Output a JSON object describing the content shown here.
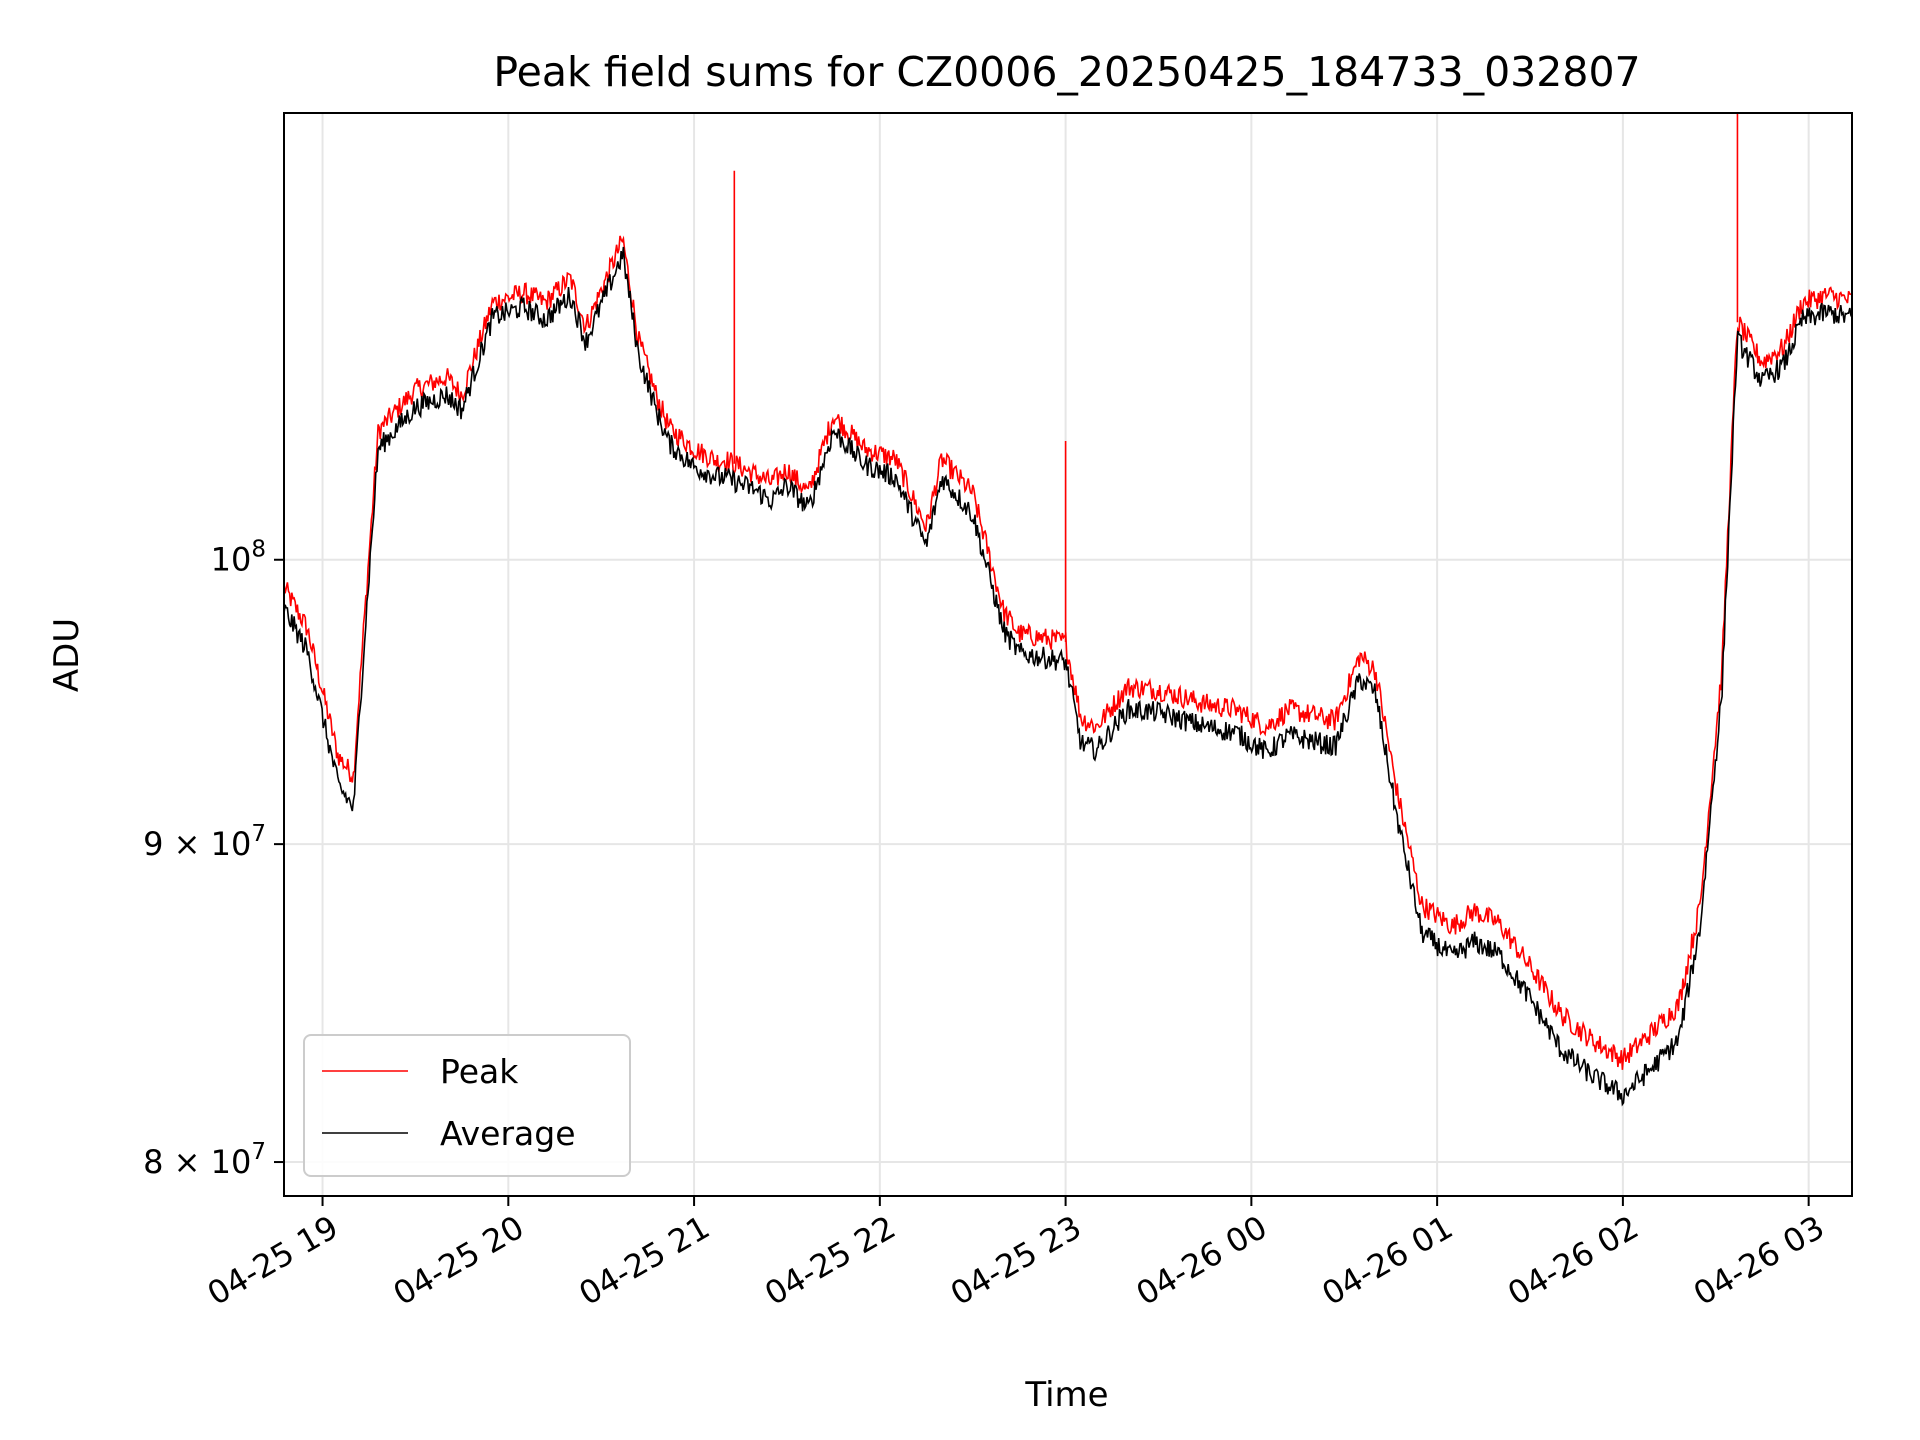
{
  "chart_data": {
    "type": "line",
    "title": "Peak field sums for CZ0006_20250425_184733_032807",
    "xlabel": "Time",
    "ylabel": "ADU",
    "yscale": "log",
    "ylim": [
      79000000,
      118000000
    ],
    "xlim": [
      "2025-04-25 18:47:33",
      "2025-04-26 03:14:00"
    ],
    "x_ticks": [
      {
        "t": "2025-04-25 19:00",
        "label": "04-25 19"
      },
      {
        "t": "2025-04-25 20:00",
        "label": "04-25 20"
      },
      {
        "t": "2025-04-25 21:00",
        "label": "04-25 21"
      },
      {
        "t": "2025-04-25 22:00",
        "label": "04-25 22"
      },
      {
        "t": "2025-04-25 23:00",
        "label": "04-25 23"
      },
      {
        "t": "2025-04-26 00:00",
        "label": "04-26 00"
      },
      {
        "t": "2025-04-26 01:00",
        "label": "04-26 01"
      },
      {
        "t": "2025-04-26 02:00",
        "label": "04-26 02"
      },
      {
        "t": "2025-04-26 03:00",
        "label": "04-26 03"
      }
    ],
    "y_ticks": [
      {
        "value": 80000000,
        "base": "8 × 10",
        "exp": "7"
      },
      {
        "value": 90000000,
        "base": "9 × 10",
        "exp": "7"
      },
      {
        "value": 100000000,
        "base": "10",
        "exp": "8"
      }
    ],
    "grid": true,
    "legend": {
      "position": "lower-left"
    },
    "series": [
      {
        "name": "Peak",
        "color": "#ff0000",
        "x": [
          "2025-04-25 18:47",
          "2025-04-25 18:55",
          "2025-04-25 19:05",
          "2025-04-25 19:10",
          "2025-04-25 19:13",
          "2025-04-25 19:18",
          "2025-04-25 19:30",
          "2025-04-25 19:40",
          "2025-04-25 19:45",
          "2025-04-25 19:55",
          "2025-04-25 20:05",
          "2025-04-25 20:12",
          "2025-04-25 20:20",
          "2025-04-25 20:25",
          "2025-04-25 20:30",
          "2025-04-25 20:37",
          "2025-04-25 20:42",
          "2025-04-25 20:48",
          "2025-04-25 20:52",
          "2025-04-25 21:00",
          "2025-04-25 21:08",
          "2025-04-25 21:10",
          "2025-04-25 21:20",
          "2025-04-25 21:25",
          "2025-04-25 21:30",
          "2025-04-25 21:37",
          "2025-04-25 21:45",
          "2025-04-25 21:55",
          "2025-04-25 22:05",
          "2025-04-25 22:15",
          "2025-04-25 22:20",
          "2025-04-25 22:30",
          "2025-04-25 22:40",
          "2025-04-25 22:45",
          "2025-04-25 22:55",
          "2025-04-25 23:00",
          "2025-04-25 23:05",
          "2025-04-25 23:10",
          "2025-04-25 23:20",
          "2025-04-25 23:30",
          "2025-04-25 23:45",
          "2025-04-25 23:55",
          "2025-04-26 00:05",
          "2025-04-26 00:12",
          "2025-04-26 00:20",
          "2025-04-26 00:27",
          "2025-04-26 00:35",
          "2025-04-26 00:40",
          "2025-04-26 00:47",
          "2025-04-26 00:55",
          "2025-04-26 01:05",
          "2025-04-26 01:12",
          "2025-04-26 01:20",
          "2025-04-26 01:30",
          "2025-04-26 01:40",
          "2025-04-26 01:50",
          "2025-04-26 02:00",
          "2025-04-26 02:10",
          "2025-04-26 02:18",
          "2025-04-26 02:25",
          "2025-04-26 02:32",
          "2025-04-26 02:37",
          "2025-04-26 02:45",
          "2025-04-26 02:52",
          "2025-04-26 02:58",
          "2025-04-26 03:06",
          "2025-04-26 03:13"
        ],
        "values": [
          99100000,
          97500000,
          93000000,
          92300000,
          97000000,
          104900000,
          106500000,
          107000000,
          106300000,
          110000000,
          110400000,
          110000000,
          111000000,
          109000000,
          110500000,
          112600000,
          108500000,
          106200000,
          105000000,
          104200000,
          103700000,
          103800000,
          103200000,
          102900000,
          103400000,
          102500000,
          105500000,
          104200000,
          103800000,
          101200000,
          103800000,
          102500000,
          98100000,
          97300000,
          97100000,
          97000000,
          94300000,
          94000000,
          95400000,
          95300000,
          94800000,
          94600000,
          94000000,
          94600000,
          94400000,
          94200000,
          96500000,
          96000000,
          91800000,
          88000000,
          87300000,
          87800000,
          87400000,
          86000000,
          84500000,
          83700000,
          83100000,
          84000000,
          84800000,
          88000000,
          96000000,
          109200000,
          107600000,
          108200000,
          110000000,
          110300000,
          110100000
        ]
      },
      {
        "name": "Average",
        "color": "#000000",
        "x": [
          "2025-04-25 18:47",
          "2025-04-25 18:55",
          "2025-04-25 19:05",
          "2025-04-25 19:10",
          "2025-04-25 19:13",
          "2025-04-25 19:18",
          "2025-04-25 19:30",
          "2025-04-25 19:40",
          "2025-04-25 19:45",
          "2025-04-25 19:55",
          "2025-04-25 20:05",
          "2025-04-25 20:12",
          "2025-04-25 20:20",
          "2025-04-25 20:25",
          "2025-04-25 20:30",
          "2025-04-25 20:37",
          "2025-04-25 20:42",
          "2025-04-25 20:48",
          "2025-04-25 20:52",
          "2025-04-25 21:00",
          "2025-04-25 21:08",
          "2025-04-25 21:10",
          "2025-04-25 21:20",
          "2025-04-25 21:25",
          "2025-04-25 21:30",
          "2025-04-25 21:37",
          "2025-04-25 21:45",
          "2025-04-25 21:55",
          "2025-04-25 22:05",
          "2025-04-25 22:15",
          "2025-04-25 22:20",
          "2025-04-25 22:30",
          "2025-04-25 22:40",
          "2025-04-25 22:45",
          "2025-04-25 22:55",
          "2025-04-25 23:00",
          "2025-04-25 23:05",
          "2025-04-25 23:10",
          "2025-04-25 23:20",
          "2025-04-25 23:30",
          "2025-04-25 23:45",
          "2025-04-25 23:55",
          "2025-04-26 00:05",
          "2025-04-26 00:12",
          "2025-04-26 00:20",
          "2025-04-26 00:27",
          "2025-04-26 00:35",
          "2025-04-26 00:40",
          "2025-04-26 00:47",
          "2025-04-26 00:55",
          "2025-04-26 01:05",
          "2025-04-26 01:12",
          "2025-04-26 01:20",
          "2025-04-26 01:30",
          "2025-04-26 01:40",
          "2025-04-26 01:50",
          "2025-04-26 02:00",
          "2025-04-26 02:10",
          "2025-04-26 02:18",
          "2025-04-26 02:25",
          "2025-04-26 02:32",
          "2025-04-26 02:37",
          "2025-04-26 02:45",
          "2025-04-26 02:52",
          "2025-04-26 02:58",
          "2025-04-26 03:06",
          "2025-04-26 03:13"
        ],
        "values": [
          98300000,
          96700000,
          92000000,
          91200000,
          96200000,
          104200000,
          105800000,
          106300000,
          105700000,
          109400000,
          109800000,
          109300000,
          110300000,
          108400000,
          109900000,
          112000000,
          107900000,
          105600000,
          104400000,
          103500000,
          103100000,
          103100000,
          102600000,
          102200000,
          102800000,
          101900000,
          104900000,
          103600000,
          103100000,
          100500000,
          103100000,
          101700000,
          97400000,
          96600000,
          96400000,
          96300000,
          93400000,
          93200000,
          94600000,
          94500000,
          94000000,
          93800000,
          93100000,
          93700000,
          93500000,
          93300000,
          95700000,
          95200000,
          90900000,
          87100000,
          86300000,
          86800000,
          86400000,
          85000000,
          83400000,
          82600000,
          82000000,
          82900000,
          83700000,
          87300000,
          95200000,
          108500000,
          106800000,
          107500000,
          109300000,
          109600000,
          109400000
        ]
      }
    ],
    "annotations": [
      {
        "series": "Peak",
        "x": "2025-04-25 21:13",
        "value": 115500000,
        "note": "spike"
      },
      {
        "series": "Peak",
        "x": "2025-04-25 23:00",
        "value": 104500000,
        "note": "spike"
      },
      {
        "series": "Peak",
        "x": "2025-04-26 02:37",
        "value": 118000000,
        "note": "spike"
      }
    ]
  }
}
